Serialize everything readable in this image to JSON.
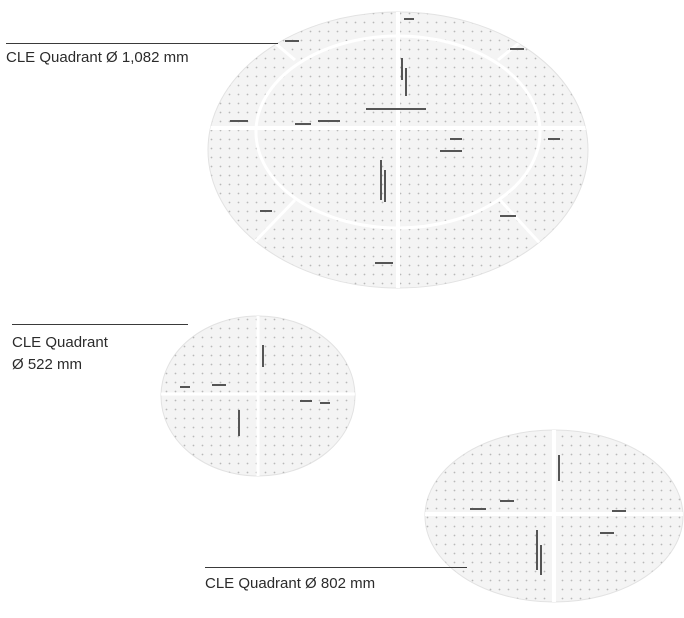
{
  "captions": {
    "large": "CLE Quadrant Ø 1,082 mm",
    "small_line1": "CLE Quadrant",
    "small_line2": "Ø 522 mm",
    "medium": "CLE Quadrant Ø 802 mm"
  },
  "quadrants": [
    {
      "id": "large",
      "diameter_mm": 1082,
      "rings": 2,
      "segments_outer": 8
    },
    {
      "id": "small",
      "diameter_mm": 522,
      "rings": 1,
      "segments_outer": 4
    },
    {
      "id": "medium",
      "diameter_mm": 802,
      "rings": 1,
      "segments_outer": 4
    }
  ],
  "colors": {
    "disc_fill": "#f4f4f4",
    "disc_edge": "#e2e2e2",
    "grid_dot": "#b8b8b8",
    "divider": "#ffffff",
    "graduation": "#555555",
    "leader_line": "#3a3a3a",
    "text": "#2b2b2b"
  }
}
